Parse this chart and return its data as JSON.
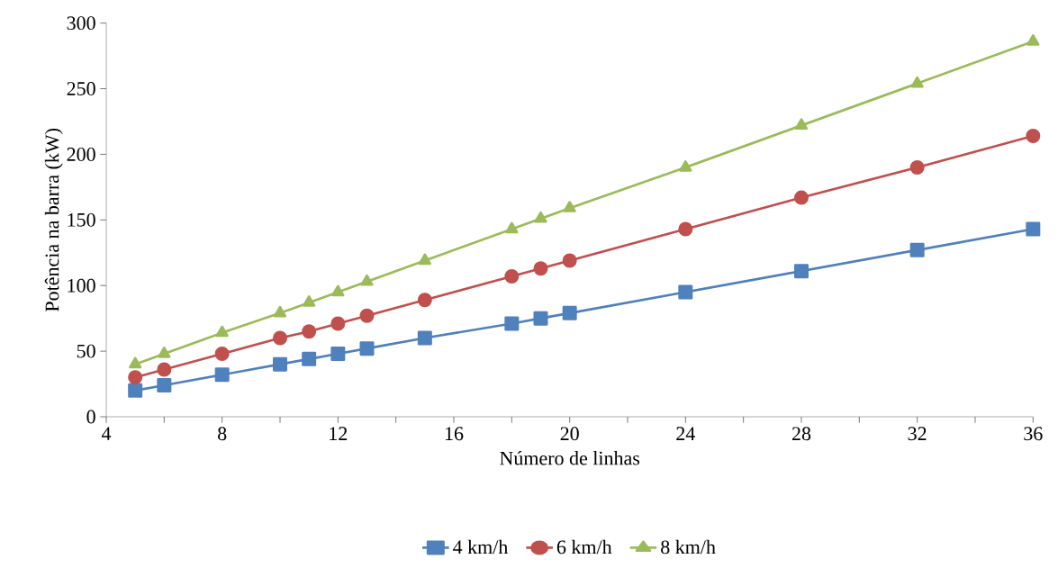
{
  "chart_data": {
    "type": "line",
    "xlabel": "Número de linhas",
    "ylabel": "Potência na barra (kW)",
    "x": [
      5,
      6,
      8,
      10,
      11,
      12,
      13,
      15,
      18,
      19,
      20,
      24,
      28,
      32,
      36
    ],
    "series": [
      {
        "name": "4 km/h",
        "color": "#4f81bd",
        "marker": "square",
        "values": [
          20,
          24,
          32,
          40,
          44,
          48,
          52,
          60,
          71,
          75,
          79,
          95,
          111,
          127,
          143
        ]
      },
      {
        "name": "6 km/h",
        "color": "#c0504d",
        "marker": "circle",
        "values": [
          30,
          36,
          48,
          60,
          65,
          71,
          77,
          89,
          107,
          113,
          119,
          143,
          167,
          190,
          214
        ]
      },
      {
        "name": "8 km/h",
        "color": "#9bbb59",
        "marker": "triangle",
        "values": [
          40,
          48,
          64,
          79,
          87,
          95,
          103,
          119,
          143,
          151,
          159,
          190,
          222,
          254,
          286
        ]
      }
    ],
    "xlim": [
      4,
      36
    ],
    "xticks": [
      4,
      {
        "value": 6,
        "label": null
      },
      8,
      {
        "value": 10,
        "label": null
      },
      12,
      {
        "value": 14,
        "label": null
      },
      16,
      {
        "value": 18,
        "label": null
      },
      20,
      {
        "value": 22,
        "label": null
      },
      24,
      {
        "value": 26,
        "label": null
      },
      28,
      {
        "value": 30,
        "label": null
      },
      32,
      {
        "value": 34,
        "label": null
      },
      36
    ],
    "ylim": [
      0,
      300
    ],
    "yticks": [
      0,
      50,
      100,
      150,
      200,
      250,
      300
    ],
    "grid": false,
    "legend": "bottom",
    "line_style": "solid"
  }
}
